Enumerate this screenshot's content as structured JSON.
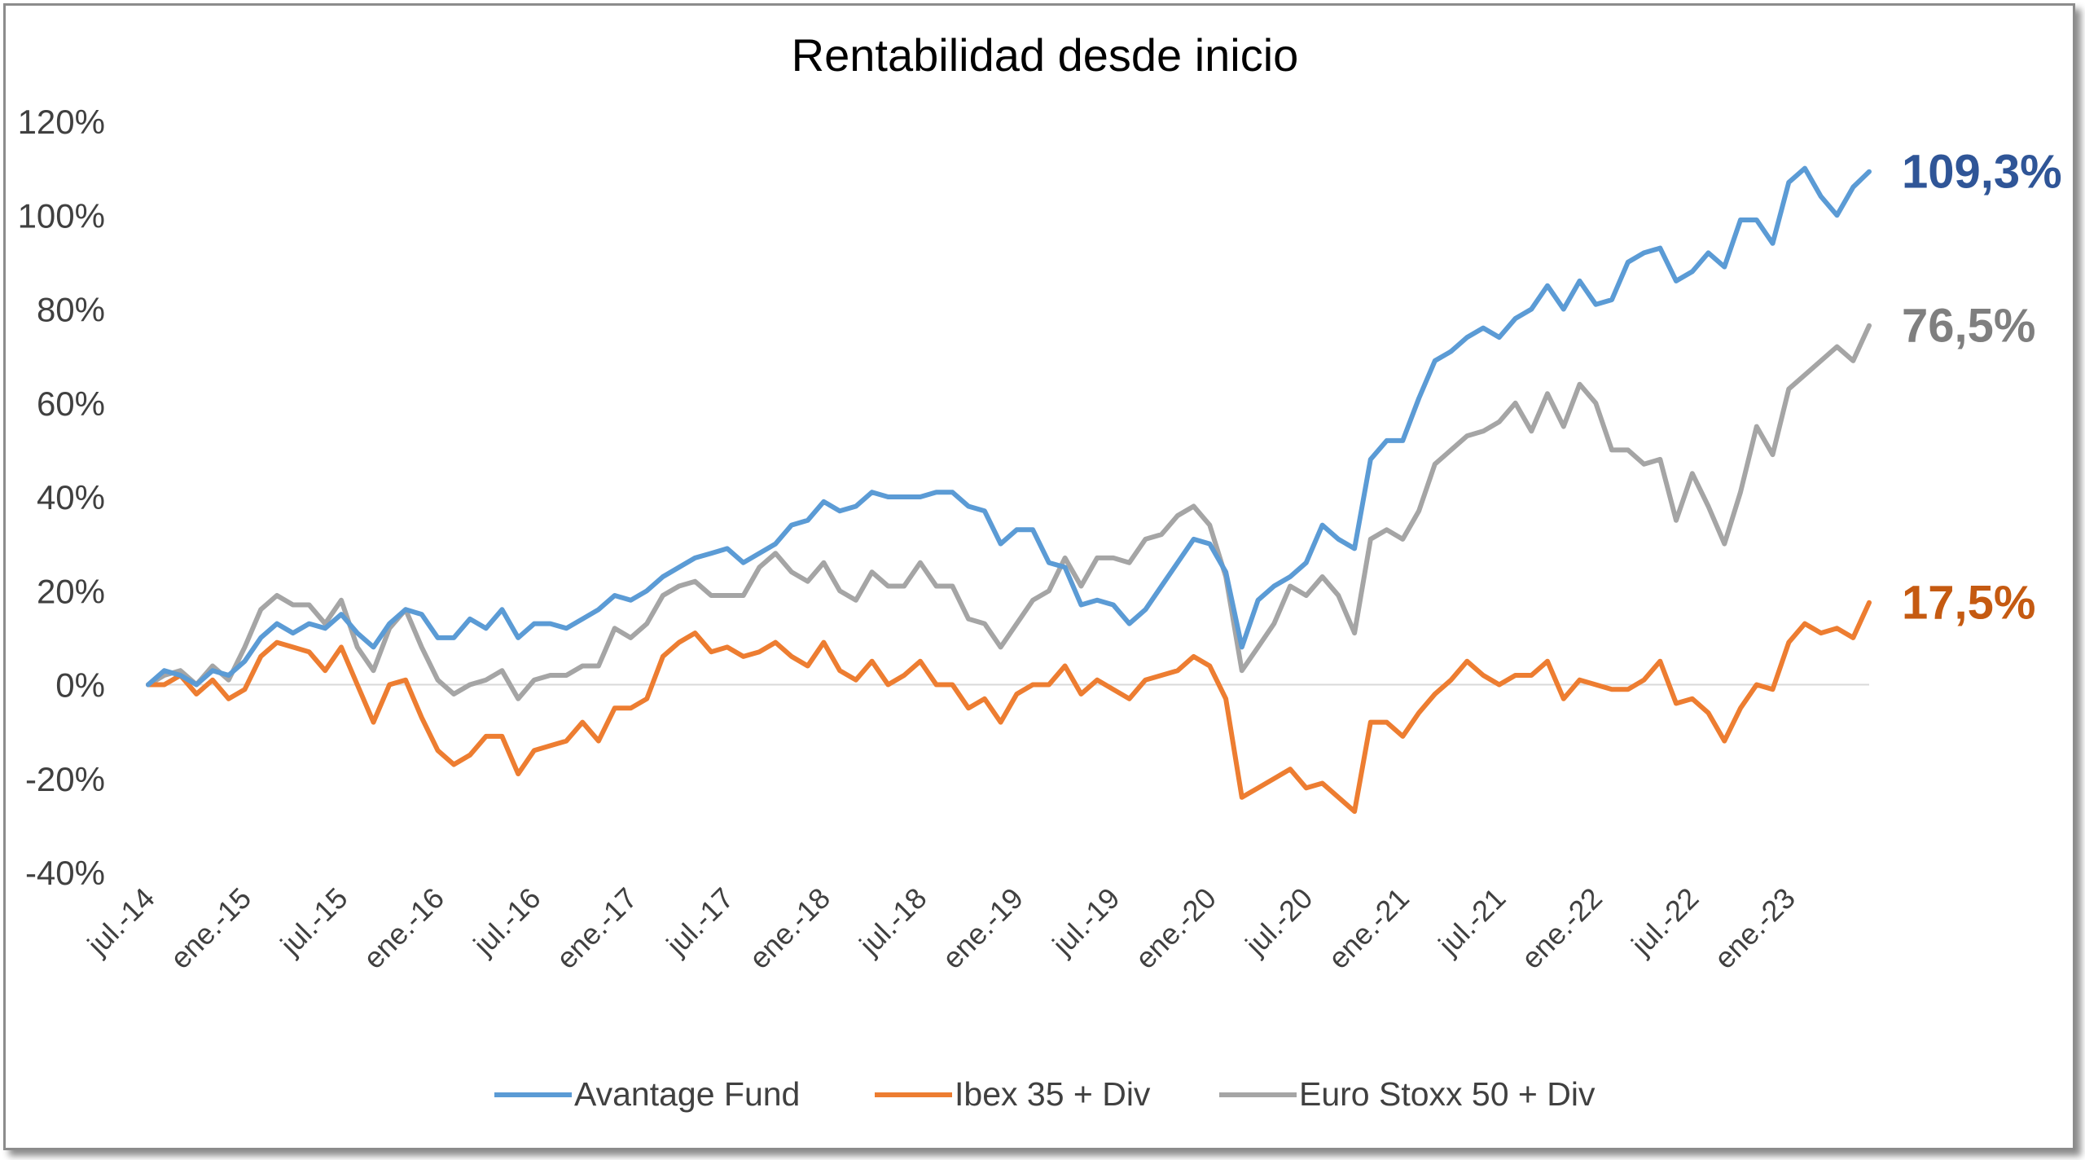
{
  "chart_data": {
    "type": "line",
    "title": "Rentabilidad desde inicio",
    "xlabel": "",
    "ylabel": "",
    "ylim": [
      -40,
      120
    ],
    "yticks": [
      -40,
      -20,
      0,
      20,
      40,
      60,
      80,
      100,
      120
    ],
    "ytick_labels": [
      "-40%",
      "-20%",
      "0%",
      "20%",
      "40%",
      "60%",
      "80%",
      "100%",
      "120%"
    ],
    "xtick_labels": [
      "jul.-14",
      "ene.-15",
      "jul.-15",
      "ene.-16",
      "jul.-16",
      "ene.-17",
      "jul.-17",
      "ene.-18",
      "jul.-18",
      "ene.-19",
      "jul.-19",
      "ene.-20",
      "jul.-20",
      "ene.-21",
      "jul.-21",
      "ene.-22",
      "jul.-22",
      "ene.-23"
    ],
    "x_start": "jul.-14",
    "x_frequency": "monthly",
    "grid": false,
    "legend_position": "bottom",
    "series": [
      {
        "name": "Avantage Fund",
        "color": "#5b9bd5",
        "end_label": "109,3%",
        "end_label_color": "#2f5597",
        "values": [
          0,
          3,
          2,
          0,
          3,
          2,
          5,
          10,
          13,
          11,
          13,
          12,
          15,
          11,
          8,
          13,
          16,
          15,
          10,
          10,
          14,
          12,
          16,
          10,
          13,
          13,
          12,
          14,
          16,
          19,
          18,
          20,
          23,
          25,
          27,
          28,
          29,
          26,
          28,
          30,
          34,
          35,
          39,
          37,
          38,
          41,
          40,
          40,
          40,
          41,
          41,
          38,
          37,
          30,
          33,
          33,
          26,
          25,
          17,
          18,
          17,
          13,
          16,
          21,
          26,
          31,
          30,
          24,
          8,
          18,
          21,
          23,
          26,
          34,
          31,
          29,
          48,
          52,
          52,
          61,
          69,
          71,
          74,
          76,
          74,
          78,
          80,
          85,
          80,
          86,
          81,
          82,
          90,
          92,
          93,
          86,
          88,
          92,
          89,
          99,
          99,
          94,
          107,
          110,
          104,
          100,
          106,
          109.3
        ]
      },
      {
        "name": "Ibex 35 + Div",
        "color": "#ed7d31",
        "end_label": "17,5%",
        "end_label_color": "#c55a11",
        "values": [
          0,
          0,
          2,
          -2,
          1,
          -3,
          -1,
          6,
          9,
          8,
          7,
          3,
          8,
          0,
          -8,
          0,
          1,
          -7,
          -14,
          -17,
          -15,
          -11,
          -11,
          -19,
          -14,
          -13,
          -12,
          -8,
          -12,
          -5,
          -5,
          -3,
          6,
          9,
          11,
          7,
          8,
          6,
          7,
          9,
          6,
          4,
          9,
          3,
          1,
          5,
          0,
          2,
          5,
          0,
          0,
          -5,
          -3,
          -8,
          -2,
          0,
          0,
          4,
          -2,
          1,
          -1,
          -3,
          1,
          2,
          3,
          6,
          4,
          -3,
          -24,
          -22,
          -20,
          -18,
          -22,
          -21,
          -24,
          -27,
          -8,
          -8,
          -11,
          -6,
          -2,
          1,
          5,
          2,
          0,
          2,
          2,
          5,
          -3,
          1,
          0,
          -1,
          -1,
          1,
          5,
          -4,
          -3,
          -6,
          -12,
          -5,
          0,
          -1,
          9,
          13,
          11,
          12,
          10,
          17.5
        ]
      },
      {
        "name": "Euro Stoxx 50 + Div",
        "color": "#a5a5a5",
        "end_label": "76,5%",
        "end_label_color": "#7f7f7f",
        "values": [
          0,
          2,
          3,
          0,
          4,
          1,
          8,
          16,
          19,
          17,
          17,
          13,
          18,
          8,
          3,
          12,
          16,
          8,
          1,
          -2,
          0,
          1,
          3,
          -3,
          1,
          2,
          2,
          4,
          4,
          12,
          10,
          13,
          19,
          21,
          22,
          19,
          19,
          19,
          25,
          28,
          24,
          22,
          26,
          20,
          18,
          24,
          21,
          21,
          26,
          21,
          21,
          14,
          13,
          8,
          13,
          18,
          20,
          27,
          21,
          27,
          27,
          26,
          31,
          32,
          36,
          38,
          34,
          23,
          3,
          8,
          13,
          21,
          19,
          23,
          19,
          11,
          31,
          33,
          31,
          37,
          47,
          50,
          53,
          54,
          56,
          60,
          54,
          62,
          55,
          64,
          60,
          50,
          50,
          47,
          48,
          35,
          45,
          38,
          30,
          41,
          55,
          49,
          63,
          66,
          69,
          72,
          69,
          76.5
        ]
      }
    ]
  }
}
